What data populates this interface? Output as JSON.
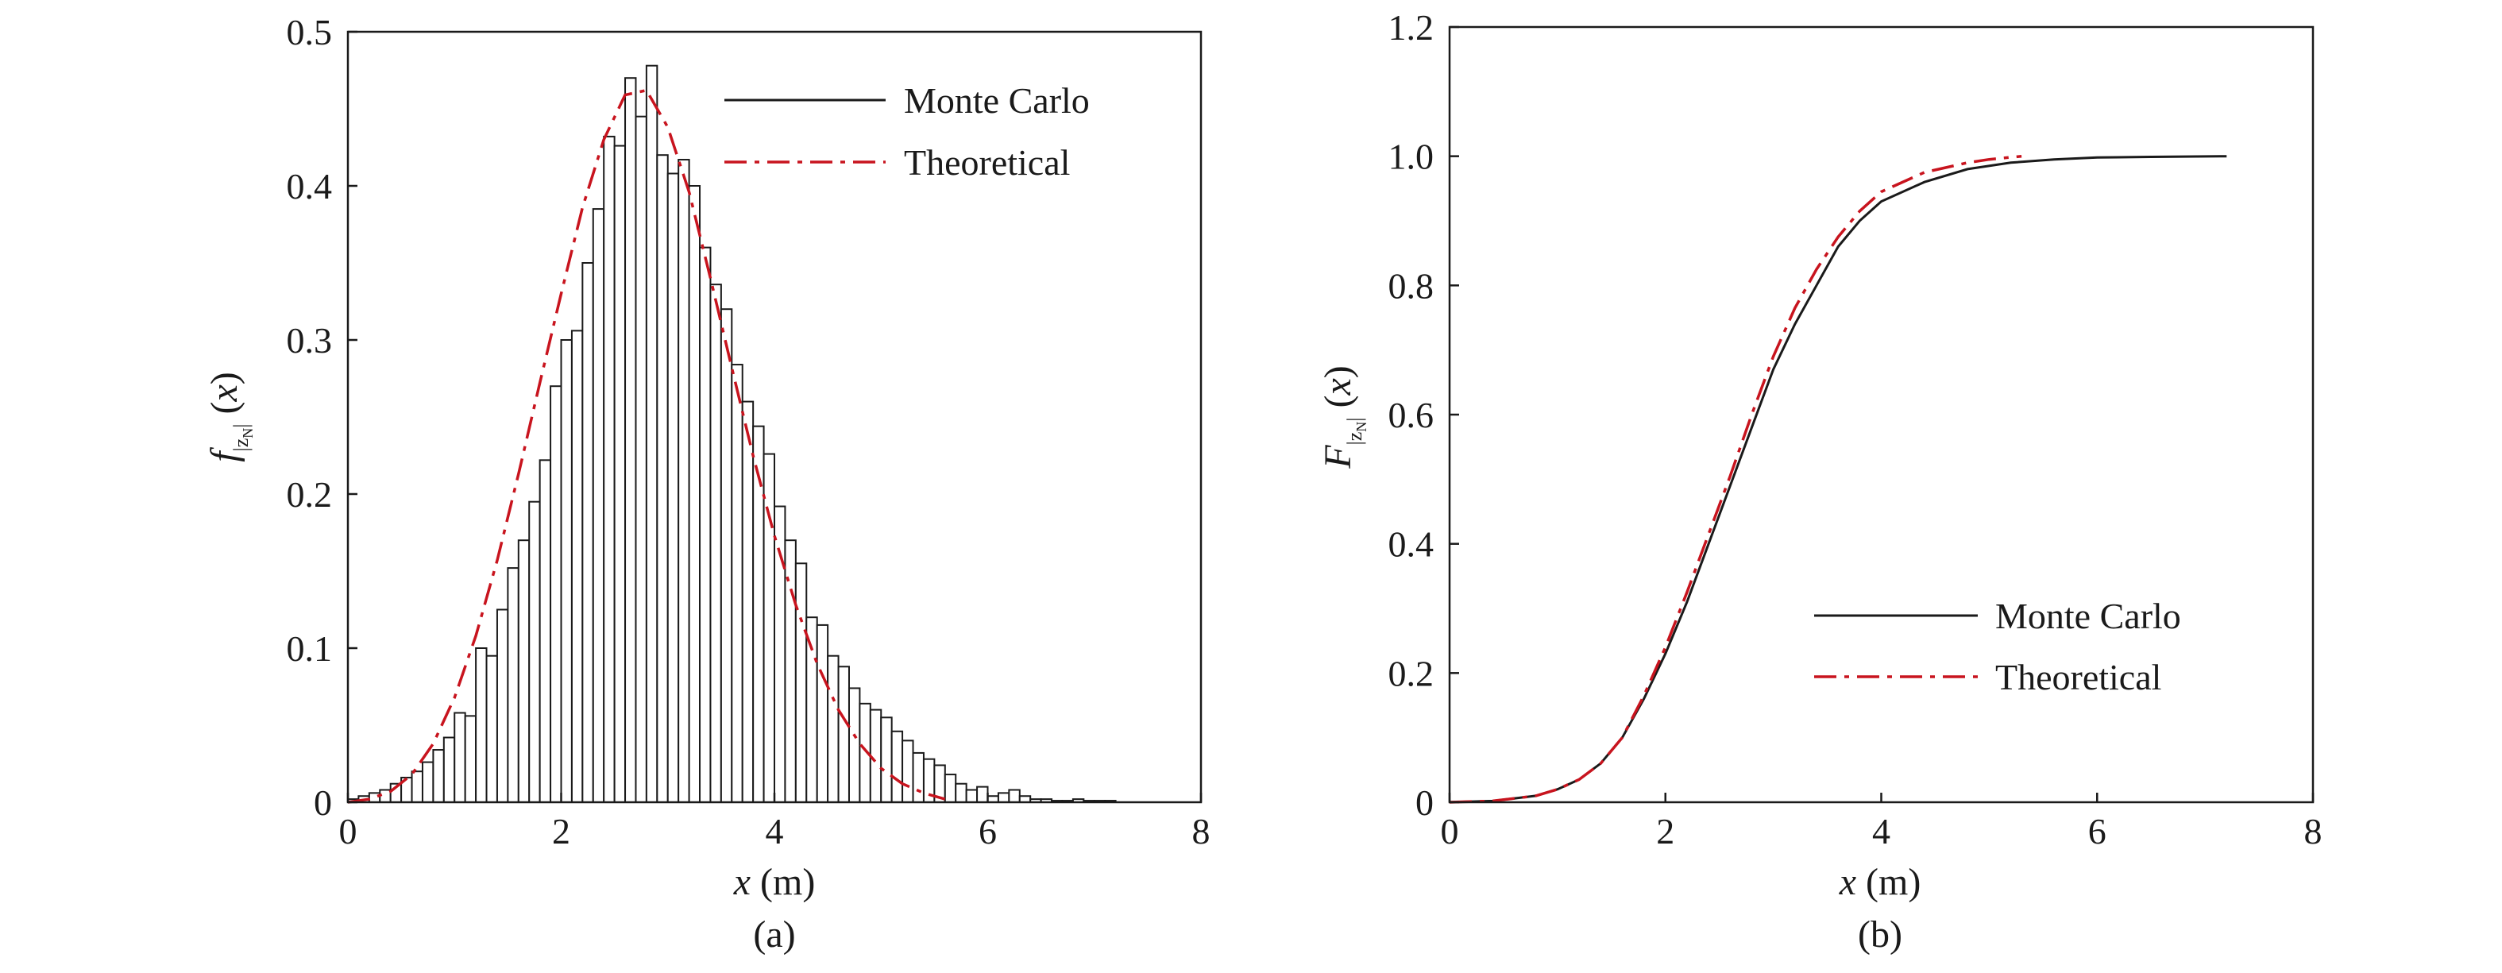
{
  "colors": {
    "monte_carlo": "#1a1a1a",
    "theoretical": "#c8141e",
    "bar_fill": "#ffffff",
    "axis": "#1a1a1a"
  },
  "chart_data": [
    {
      "type": "bar",
      "panel_label": "(a)",
      "xlabel": "x (m)",
      "ylabel": "f|zN|(x)",
      "xlim": [
        0,
        8
      ],
      "ylim": [
        0,
        0.5
      ],
      "xticks": [
        "0",
        "2",
        "4",
        "6",
        "8"
      ],
      "yticks": [
        "0",
        "0.1",
        "0.2",
        "0.3",
        "0.4",
        "0.5"
      ],
      "grid": false,
      "legend": {
        "placement": "top-right",
        "entries": [
          "Monte Carlo",
          "Theoretical"
        ]
      },
      "bin_width": 0.1,
      "bin_start": 0,
      "histogram_values": [
        0.002,
        0.004,
        0.006,
        0.008,
        0.012,
        0.016,
        0.02,
        0.026,
        0.034,
        0.042,
        0.058,
        0.056,
        0.1,
        0.095,
        0.125,
        0.152,
        0.17,
        0.195,
        0.222,
        0.27,
        0.3,
        0.306,
        0.35,
        0.385,
        0.432,
        0.426,
        0.47,
        0.445,
        0.478,
        0.42,
        0.408,
        0.417,
        0.4,
        0.36,
        0.336,
        0.32,
        0.284,
        0.26,
        0.244,
        0.226,
        0.192,
        0.17,
        0.155,
        0.12,
        0.115,
        0.095,
        0.088,
        0.074,
        0.064,
        0.06,
        0.055,
        0.046,
        0.04,
        0.032,
        0.028,
        0.024,
        0.018,
        0.012,
        0.008,
        0.01,
        0.004,
        0.006,
        0.008,
        0.004,
        0.002,
        0.002,
        0.001,
        0.001,
        0.002,
        0.001,
        0.001,
        0.001,
        0.0,
        0.0
      ],
      "series": [
        {
          "name": "Monte Carlo",
          "kind": "histogram"
        },
        {
          "name": "Theoretical",
          "kind": "line",
          "style": "dash-dot",
          "x": [
            0.0,
            0.2,
            0.4,
            0.6,
            0.8,
            1.0,
            1.2,
            1.4,
            1.6,
            1.8,
            2.0,
            2.2,
            2.4,
            2.6,
            2.8,
            3.0,
            3.2,
            3.4,
            3.6,
            3.8,
            4.0,
            4.2,
            4.4,
            4.6,
            4.8,
            5.0,
            5.2,
            5.4,
            5.6
          ],
          "y": [
            0.0,
            0.002,
            0.007,
            0.018,
            0.038,
            0.068,
            0.108,
            0.157,
            0.213,
            0.272,
            0.33,
            0.386,
            0.43,
            0.459,
            0.462,
            0.438,
            0.396,
            0.34,
            0.282,
            0.225,
            0.173,
            0.128,
            0.09,
            0.06,
            0.038,
            0.022,
            0.012,
            0.006,
            0.002
          ]
        }
      ]
    },
    {
      "type": "line",
      "panel_label": "(b)",
      "xlabel": "x (m)",
      "ylabel": "F|zN|(x)",
      "xlim": [
        0,
        8
      ],
      "ylim": [
        0,
        1.2
      ],
      "xticks": [
        "0",
        "2",
        "4",
        "6",
        "8"
      ],
      "yticks": [
        "0",
        "0.2",
        "0.4",
        "0.6",
        "0.8",
        "1.0",
        "1.2"
      ],
      "grid": false,
      "legend": {
        "placement": "bottom-right",
        "entries": [
          "Monte Carlo",
          "Theoretical"
        ]
      },
      "series": [
        {
          "name": "Monte Carlo",
          "style": "solid",
          "x": [
            0.0,
            0.4,
            0.8,
            1.0,
            1.2,
            1.4,
            1.6,
            1.8,
            2.0,
            2.2,
            2.4,
            2.6,
            2.8,
            3.0,
            3.2,
            3.4,
            3.6,
            3.8,
            4.0,
            4.4,
            4.8,
            5.2,
            5.6,
            6.0,
            6.5,
            7.2
          ],
          "y": [
            0.0,
            0.002,
            0.01,
            0.02,
            0.035,
            0.06,
            0.1,
            0.16,
            0.23,
            0.31,
            0.4,
            0.49,
            0.58,
            0.67,
            0.74,
            0.8,
            0.86,
            0.9,
            0.93,
            0.96,
            0.98,
            0.99,
            0.995,
            0.998,
            0.999,
            1.0
          ]
        },
        {
          "name": "Theoretical",
          "style": "dash-dot",
          "x": [
            0.0,
            0.4,
            0.8,
            1.0,
            1.2,
            1.4,
            1.6,
            1.8,
            2.0,
            2.2,
            2.4,
            2.6,
            2.8,
            3.0,
            3.2,
            3.4,
            3.6,
            3.8,
            4.0,
            4.4,
            4.8,
            5.0,
            5.3
          ],
          "y": [
            0.0,
            0.002,
            0.01,
            0.02,
            0.035,
            0.06,
            0.1,
            0.165,
            0.24,
            0.325,
            0.415,
            0.505,
            0.6,
            0.69,
            0.765,
            0.825,
            0.875,
            0.915,
            0.945,
            0.975,
            0.99,
            0.995,
            1.0
          ]
        }
      ]
    }
  ]
}
